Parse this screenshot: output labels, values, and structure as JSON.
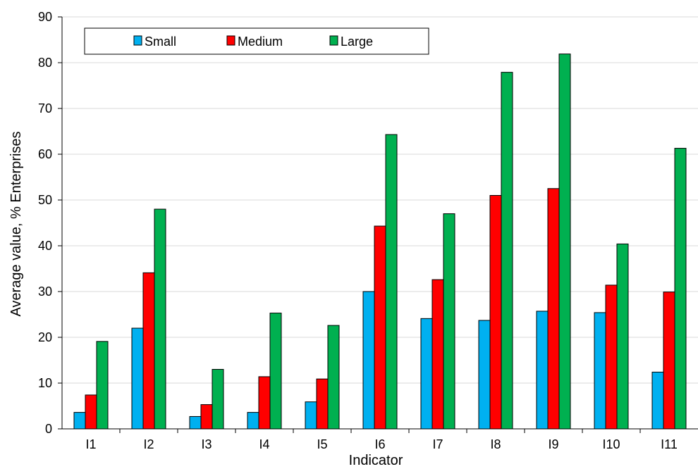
{
  "chart_data": {
    "type": "bar",
    "title": "",
    "xlabel": "Indicator",
    "ylabel": "Average value, % Enterprises",
    "ylim": [
      0,
      90
    ],
    "yticks": [
      0,
      10,
      20,
      30,
      40,
      50,
      60,
      70,
      80,
      90
    ],
    "grid": true,
    "legend_position": "top-left",
    "categories": [
      "I1",
      "I2",
      "I3",
      "I4",
      "I5",
      "I6",
      "I7",
      "I8",
      "I9",
      "I10",
      "I11"
    ],
    "series": [
      {
        "name": "Small",
        "color": "#00b0f0",
        "values": [
          3.6,
          22.0,
          2.7,
          3.6,
          5.9,
          30.0,
          24.1,
          23.7,
          25.7,
          25.4,
          12.4
        ]
      },
      {
        "name": "Medium",
        "color": "#ff0000",
        "values": [
          7.4,
          34.1,
          5.3,
          11.4,
          10.9,
          44.3,
          32.6,
          51.0,
          52.5,
          31.4,
          29.9
        ]
      },
      {
        "name": "Large",
        "color": "#00b050",
        "values": [
          19.1,
          48.0,
          13.0,
          25.3,
          22.6,
          64.3,
          47.0,
          77.9,
          81.9,
          40.4,
          61.3
        ]
      }
    ]
  }
}
